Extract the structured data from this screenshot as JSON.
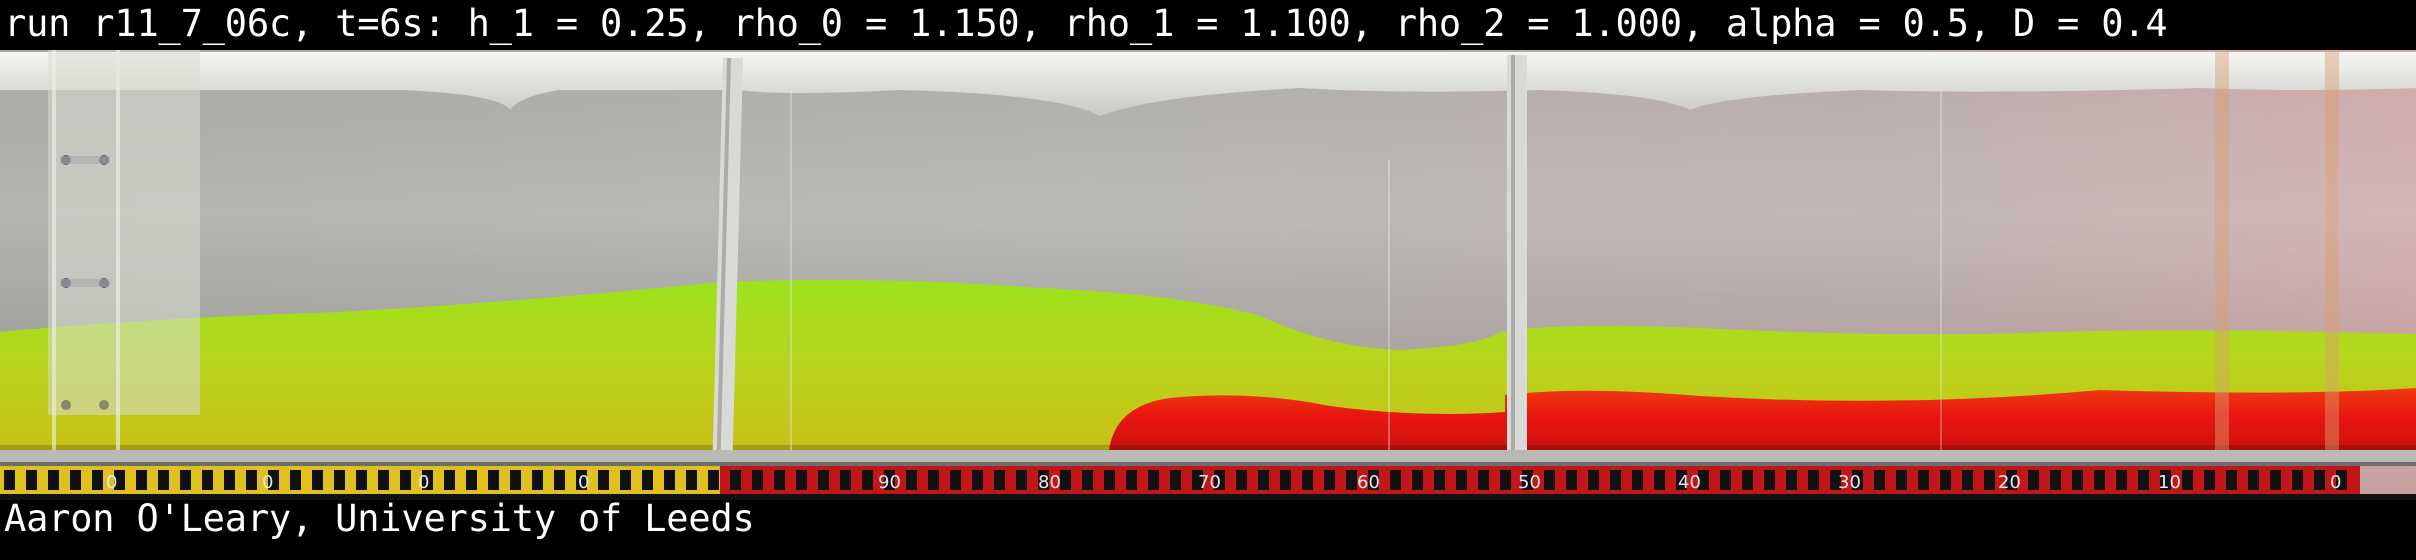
{
  "caption_top": "run r11_7_06c, t=6s: h_1 = 0.25, rho_0 = 1.150, rho_1 = 1.100, rho_2 = 1.000, alpha = 0.5, D = 0.4",
  "caption_bottom": "Aaron O'Leary, University of Leeds",
  "scale": {
    "left_labels": [
      "0",
      "0",
      "0",
      "0"
    ],
    "right_labels": [
      "90",
      "80",
      "70",
      "60",
      "50",
      "40",
      "30",
      "20",
      "10",
      "0"
    ]
  },
  "colors": {
    "background": "#000000",
    "caption_text": "#ffffff",
    "green_layer": "#9be21a",
    "yellow_layer": "#c9c41a",
    "red_layer": "#e8150f",
    "scale_yellow": "#e0c020",
    "scale_red": "#c01818"
  }
}
